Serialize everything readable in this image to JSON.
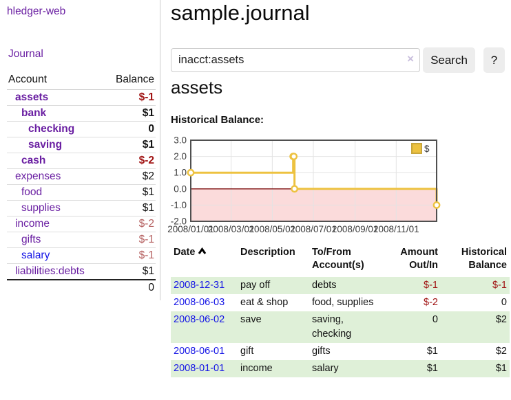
{
  "app": {
    "brand": "hledger-web"
  },
  "colors": {
    "link_purple": "#6a1fa2",
    "link_blue": "#1414e6",
    "negative_strong": "#a01313",
    "negative_soft": "#b56060",
    "row_green": "#dff0d8",
    "button_bg": "#ededed"
  },
  "sidebar": {
    "journal_label": "Journal",
    "table": {
      "headers": [
        "Account",
        "Balance"
      ],
      "rows": [
        {
          "name": "assets",
          "balance": "$-1",
          "depth": 1,
          "bold": true,
          "name_color": "purple",
          "amount_color": "darkred"
        },
        {
          "name": "bank",
          "balance": "$1",
          "depth": 2,
          "bold": true,
          "name_color": "purple",
          "amount_color": "black"
        },
        {
          "name": "checking",
          "balance": "0",
          "depth": 3,
          "bold": true,
          "name_color": "purple",
          "amount_color": "black"
        },
        {
          "name": "saving",
          "balance": "$1",
          "depth": 3,
          "bold": true,
          "name_color": "purple",
          "amount_color": "black"
        },
        {
          "name": "cash",
          "balance": "$-2",
          "depth": 2,
          "bold": true,
          "name_color": "purple",
          "amount_color": "darkred"
        },
        {
          "name": "expenses",
          "balance": "$2",
          "depth": 1,
          "bold": false,
          "name_color": "purple",
          "amount_color": "black"
        },
        {
          "name": "food",
          "balance": "$1",
          "depth": 2,
          "bold": false,
          "name_color": "purple",
          "amount_color": "black"
        },
        {
          "name": "supplies",
          "balance": "$1",
          "depth": 2,
          "bold": false,
          "name_color": "purple",
          "amount_color": "black"
        },
        {
          "name": "income",
          "balance": "$-2",
          "depth": 1,
          "bold": false,
          "name_color": "purple",
          "amount_color": "rosy"
        },
        {
          "name": "gifts",
          "balance": "$-1",
          "depth": 2,
          "bold": false,
          "name_color": "purple",
          "amount_color": "rosy"
        },
        {
          "name": "salary",
          "balance": "$-1",
          "depth": 2,
          "bold": false,
          "name_color": "blue",
          "amount_color": "rosy"
        },
        {
          "name": "liabilities:debts",
          "balance": "$1",
          "depth": 1,
          "bold": false,
          "name_color": "purple",
          "amount_color": "black"
        }
      ],
      "total": "0"
    }
  },
  "main": {
    "title": "sample.journal",
    "search": {
      "value": "inacct:assets",
      "clear_icon": "×",
      "button_label": "Search",
      "help_label": "?"
    },
    "heading": "assets",
    "chart_label": "Historical Balance:"
  },
  "chart_data": {
    "type": "line",
    "title": "Historical Balance:",
    "line_style": "step",
    "legend": [
      {
        "label": "$",
        "color": "#edc240"
      }
    ],
    "legend_position": "top-right",
    "grid": true,
    "x_range": [
      0,
      365
    ],
    "ylim": [
      -2,
      3
    ],
    "series": [
      {
        "name": "$",
        "points": [
          {
            "date": "2008/01/01",
            "day": 0,
            "value": 1
          },
          {
            "date": "2008/06/01",
            "day": 152,
            "value": 2
          },
          {
            "date": "2008/06/02",
            "day": 153,
            "value": 2
          },
          {
            "date": "2008/06/03",
            "day": 154,
            "value": 0
          },
          {
            "date": "2008/12/31",
            "day": 365,
            "value": -1
          }
        ]
      }
    ],
    "x_ticks": [
      {
        "label": "2008/01/01",
        "day": 0
      },
      {
        "label": "2008/03/01",
        "day": 60
      },
      {
        "label": "2008/05/01",
        "day": 121
      },
      {
        "label": "2008/07/01",
        "day": 182
      },
      {
        "label": "2008/09/01",
        "day": 244
      },
      {
        "label": "2008/11/01",
        "day": 305
      }
    ],
    "y_ticks": [
      {
        "label": "3.0",
        "value": 3
      },
      {
        "label": "2.0",
        "value": 2
      },
      {
        "label": "1.0",
        "value": 1
      },
      {
        "label": "0.0",
        "value": 0
      },
      {
        "label": "-1.0",
        "value": -1
      },
      {
        "label": "-2.0",
        "value": -2
      }
    ],
    "negative_region_fill": "#fbdbdb",
    "zero_line_color": "#7d1010",
    "line_color": "#edc240"
  },
  "register": {
    "headers": [
      "Date",
      "Description",
      "To/From Account(s)",
      "Amount Out/In",
      "Historical Balance"
    ],
    "rows": [
      {
        "date": "2008-12-31",
        "description": "pay off",
        "accounts": "debts",
        "amount": "$-1",
        "amount_negative": true,
        "balance": "$-1",
        "balance_negative": true
      },
      {
        "date": "2008-06-03",
        "description": "eat & shop",
        "accounts": "food, supplies",
        "amount": "$-2",
        "amount_negative": true,
        "balance": "0",
        "balance_negative": false
      },
      {
        "date": "2008-06-02",
        "description": "save",
        "accounts": "saving, checking",
        "amount": "0",
        "amount_negative": false,
        "balance": "$2",
        "balance_negative": false
      },
      {
        "date": "2008-06-01",
        "description": "gift",
        "accounts": "gifts",
        "amount": "$1",
        "amount_negative": false,
        "balance": "$2",
        "balance_negative": false
      },
      {
        "date": "2008-01-01",
        "description": "income",
        "accounts": "salary",
        "amount": "$1",
        "amount_negative": false,
        "balance": "$1",
        "balance_negative": false
      }
    ]
  }
}
